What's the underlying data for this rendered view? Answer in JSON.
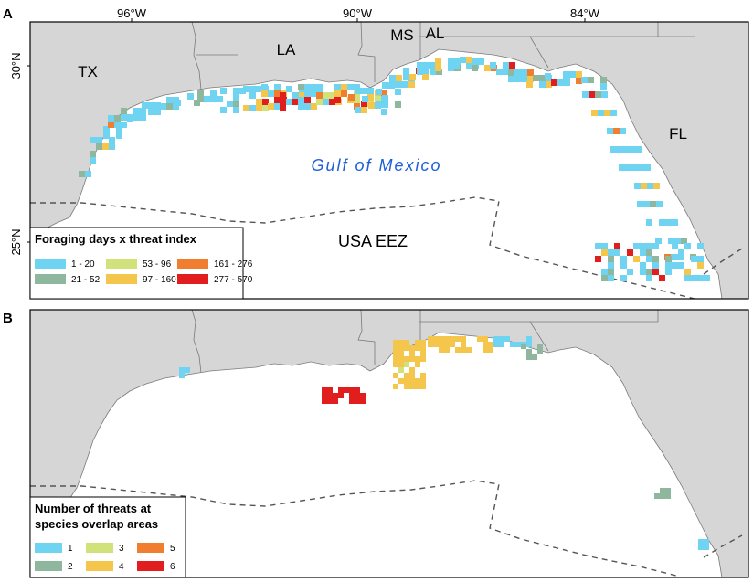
{
  "panel_a": {
    "label": "A",
    "lon_ticks": [
      "96°W",
      "90°W",
      "84°W"
    ],
    "lat_ticks": [
      "30°N",
      "25°N"
    ],
    "state_labels": [
      "TX",
      "LA",
      "MS",
      "AL",
      "FL"
    ],
    "water_label": "Gulf of Mexico",
    "eez_label": "USA EEZ",
    "legend": {
      "title": "Foraging days x threat index",
      "classes": [
        {
          "label": "1 - 20",
          "color": "#6fd3f2"
        },
        {
          "label": "21 - 52",
          "color": "#8fb79e"
        },
        {
          "label": "53 - 96",
          "color": "#d2e27a"
        },
        {
          "label": "97 - 160",
          "color": "#f5c64c"
        },
        {
          "label": "161 - 276",
          "color": "#f07e2e"
        },
        {
          "label": "277 - 570",
          "color": "#e21d1d"
        }
      ]
    }
  },
  "panel_b": {
    "label": "B",
    "legend": {
      "title_line1": "Number of threats at",
      "title_line2": "species overlap areas",
      "classes": [
        {
          "label": "1",
          "color": "#6fd3f2"
        },
        {
          "label": "2",
          "color": "#8fb79e"
        },
        {
          "label": "3",
          "color": "#d2e27a"
        },
        {
          "label": "4",
          "color": "#f5c64c"
        },
        {
          "label": "5",
          "color": "#f07e2e"
        },
        {
          "label": "6",
          "color": "#e21d1d"
        }
      ]
    }
  }
}
